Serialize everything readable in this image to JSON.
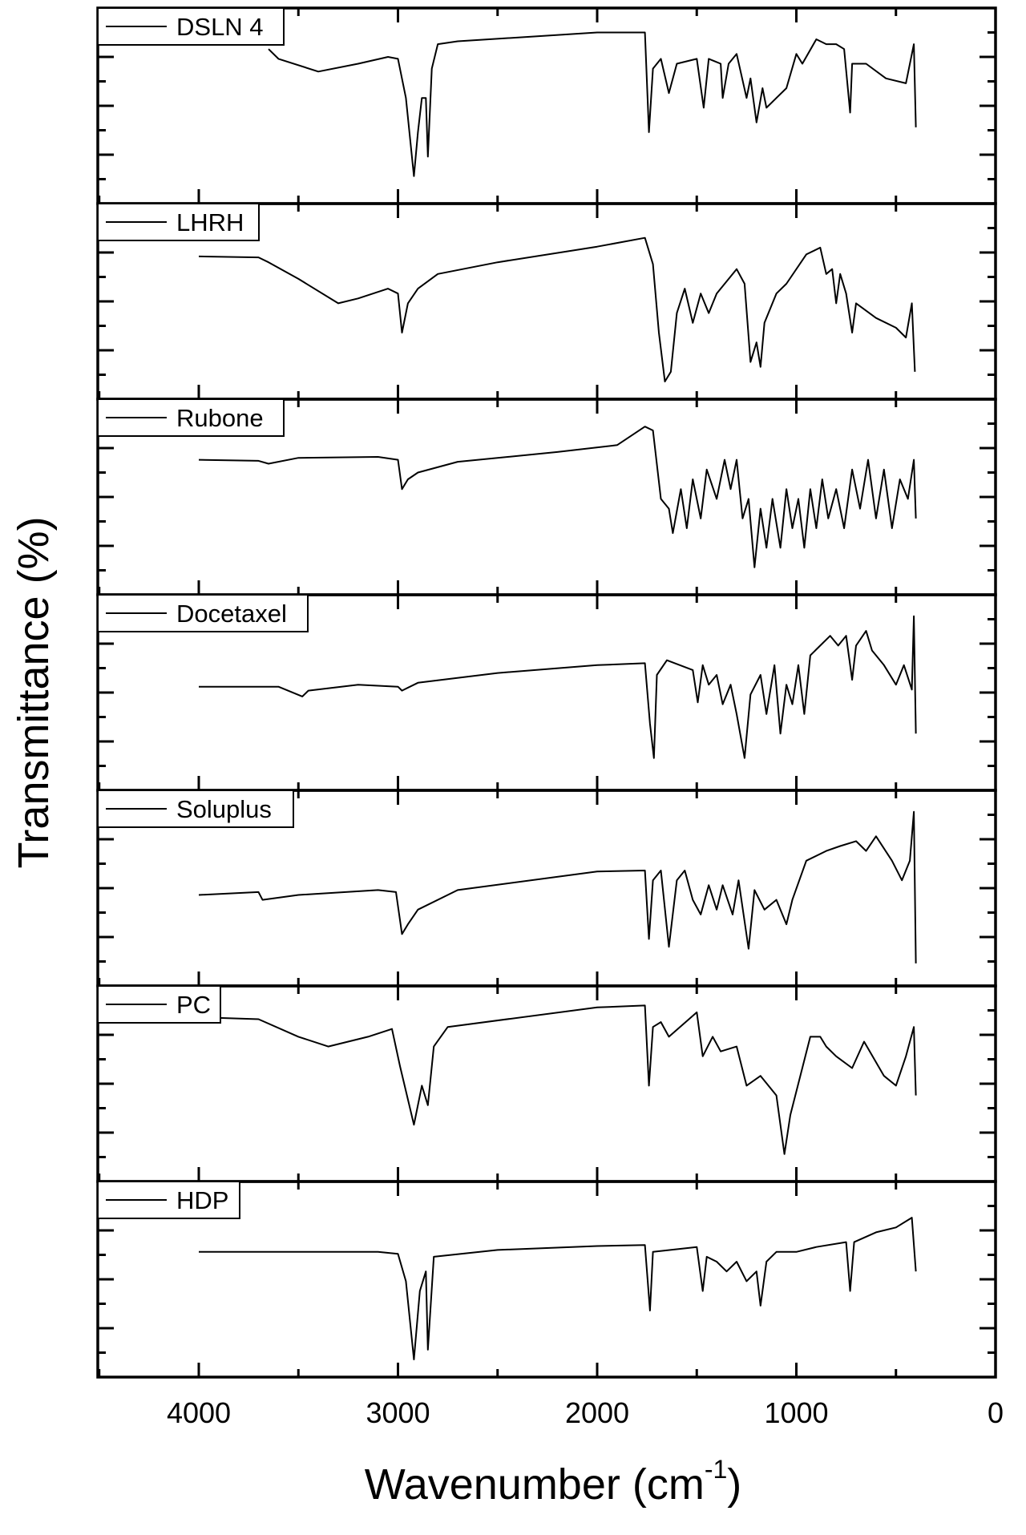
{
  "chart_data": {
    "type": "line",
    "title": "",
    "xlabel": "Wavenumber (cm-1)",
    "xlabel_main": "Wavenumber (cm",
    "xlabel_sup": "-1",
    "xlabel_close": ")",
    "ylabel": "Transmittance (%)",
    "xlim": [
      4500,
      0
    ],
    "x_ticks": [
      4000,
      3000,
      2000,
      1000,
      0
    ],
    "x_tick_labels": [
      "4000",
      "3000",
      "2000",
      "1000",
      "0"
    ],
    "y_units_note": "each panel is normalized to 0–100 (relative transmittance, axes unlabeled)",
    "ylim": [
      0,
      100
    ],
    "grid": false,
    "legend_placement": "top-left of each panel",
    "line_color": "#000000",
    "series": [
      {
        "name": "DSLN 4",
        "points": [
          [
            3650,
            79
          ],
          [
            3600,
            74
          ],
          [
            3400,
            67.5
          ],
          [
            3200,
            71.5
          ],
          [
            3050,
            75
          ],
          [
            3000,
            74
          ],
          [
            2960,
            54
          ],
          [
            2920,
            14
          ],
          [
            2900,
            36.5
          ],
          [
            2880,
            54
          ],
          [
            2860,
            54
          ],
          [
            2850,
            24
          ],
          [
            2830,
            69
          ],
          [
            2800,
            81.5
          ],
          [
            2700,
            83
          ],
          [
            2000,
            87.5
          ],
          [
            1760,
            87.5
          ],
          [
            1740,
            36.5
          ],
          [
            1720,
            69
          ],
          [
            1680,
            74
          ],
          [
            1640,
            56.5
          ],
          [
            1600,
            71.5
          ],
          [
            1500,
            74
          ],
          [
            1465,
            49
          ],
          [
            1440,
            74
          ],
          [
            1380,
            71.5
          ],
          [
            1370,
            54
          ],
          [
            1340,
            71.5
          ],
          [
            1300,
            76.5
          ],
          [
            1250,
            54
          ],
          [
            1230,
            64
          ],
          [
            1200,
            41.5
          ],
          [
            1170,
            59
          ],
          [
            1150,
            49
          ],
          [
            1100,
            54
          ],
          [
            1050,
            59
          ],
          [
            1000,
            76.5
          ],
          [
            970,
            71.5
          ],
          [
            900,
            84
          ],
          [
            850,
            81.5
          ],
          [
            800,
            81.5
          ],
          [
            760,
            79
          ],
          [
            730,
            46.5
          ],
          [
            720,
            71.5
          ],
          [
            650,
            71.5
          ],
          [
            550,
            64
          ],
          [
            450,
            61.5
          ],
          [
            410,
            81.5
          ],
          [
            400,
            39
          ]
        ]
      },
      {
        "name": "LHRH",
        "points": [
          [
            4000,
            73
          ],
          [
            3700,
            72.5
          ],
          [
            3650,
            70
          ],
          [
            3500,
            61.5
          ],
          [
            3300,
            49
          ],
          [
            3200,
            51.5
          ],
          [
            3050,
            56.5
          ],
          [
            3000,
            54
          ],
          [
            2980,
            34
          ],
          [
            2950,
            49
          ],
          [
            2900,
            56.5
          ],
          [
            2800,
            64
          ],
          [
            2500,
            70
          ],
          [
            2000,
            78
          ],
          [
            1760,
            82.5
          ],
          [
            1720,
            69
          ],
          [
            1690,
            34
          ],
          [
            1660,
            9
          ],
          [
            1630,
            14
          ],
          [
            1600,
            44
          ],
          [
            1560,
            56.5
          ],
          [
            1520,
            39
          ],
          [
            1480,
            54
          ],
          [
            1440,
            44
          ],
          [
            1400,
            54
          ],
          [
            1300,
            66.5
          ],
          [
            1260,
            59
          ],
          [
            1230,
            19
          ],
          [
            1200,
            29
          ],
          [
            1180,
            16.5
          ],
          [
            1160,
            39
          ],
          [
            1100,
            54
          ],
          [
            1050,
            59
          ],
          [
            950,
            74
          ],
          [
            880,
            77.5
          ],
          [
            850,
            64
          ],
          [
            820,
            66.5
          ],
          [
            800,
            49
          ],
          [
            780,
            64
          ],
          [
            750,
            54
          ],
          [
            720,
            34
          ],
          [
            700,
            49
          ],
          [
            600,
            41.5
          ],
          [
            500,
            36.5
          ],
          [
            450,
            31.5
          ],
          [
            420,
            49
          ],
          [
            405,
            14
          ]
        ]
      },
      {
        "name": "Rubone",
        "points": [
          [
            4000,
            69
          ],
          [
            3700,
            68.5
          ],
          [
            3650,
            67
          ],
          [
            3500,
            70
          ],
          [
            3100,
            70.5
          ],
          [
            3000,
            69
          ],
          [
            2980,
            54
          ],
          [
            2950,
            59
          ],
          [
            2900,
            62.5
          ],
          [
            2700,
            68
          ],
          [
            2200,
            73
          ],
          [
            1900,
            76.5
          ],
          [
            1760,
            86
          ],
          [
            1720,
            84
          ],
          [
            1680,
            49
          ],
          [
            1640,
            44
          ],
          [
            1620,
            31.5
          ],
          [
            1580,
            54
          ],
          [
            1550,
            34
          ],
          [
            1520,
            59
          ],
          [
            1480,
            39
          ],
          [
            1450,
            64
          ],
          [
            1400,
            49
          ],
          [
            1360,
            69
          ],
          [
            1330,
            54
          ],
          [
            1300,
            69
          ],
          [
            1270,
            39
          ],
          [
            1240,
            49
          ],
          [
            1210,
            14
          ],
          [
            1180,
            44
          ],
          [
            1150,
            24
          ],
          [
            1120,
            49
          ],
          [
            1080,
            24
          ],
          [
            1050,
            54
          ],
          [
            1020,
            34
          ],
          [
            990,
            49
          ],
          [
            960,
            24
          ],
          [
            930,
            54
          ],
          [
            900,
            34
          ],
          [
            870,
            59
          ],
          [
            840,
            39
          ],
          [
            800,
            54
          ],
          [
            760,
            34
          ],
          [
            720,
            64
          ],
          [
            680,
            44
          ],
          [
            640,
            69
          ],
          [
            600,
            39
          ],
          [
            560,
            64
          ],
          [
            520,
            34
          ],
          [
            480,
            59
          ],
          [
            440,
            49
          ],
          [
            410,
            69
          ],
          [
            400,
            39
          ]
        ]
      },
      {
        "name": "Docetaxel",
        "points": [
          [
            4000,
            53
          ],
          [
            3600,
            53
          ],
          [
            3480,
            48
          ],
          [
            3450,
            51
          ],
          [
            3200,
            54
          ],
          [
            3000,
            53
          ],
          [
            2980,
            51
          ],
          [
            2900,
            55
          ],
          [
            2500,
            60
          ],
          [
            2000,
            64
          ],
          [
            1760,
            65
          ],
          [
            1735,
            34
          ],
          [
            1715,
            16.5
          ],
          [
            1700,
            59
          ],
          [
            1650,
            66.5
          ],
          [
            1520,
            61.5
          ],
          [
            1495,
            45
          ],
          [
            1470,
            64
          ],
          [
            1440,
            54
          ],
          [
            1400,
            59
          ],
          [
            1370,
            44
          ],
          [
            1330,
            54
          ],
          [
            1300,
            39
          ],
          [
            1260,
            16.5
          ],
          [
            1230,
            49
          ],
          [
            1180,
            59
          ],
          [
            1150,
            39
          ],
          [
            1110,
            64
          ],
          [
            1080,
            29
          ],
          [
            1050,
            54
          ],
          [
            1020,
            44
          ],
          [
            990,
            64
          ],
          [
            960,
            39
          ],
          [
            930,
            69
          ],
          [
            880,
            74
          ],
          [
            830,
            79
          ],
          [
            790,
            74
          ],
          [
            750,
            79
          ],
          [
            720,
            56.5
          ],
          [
            700,
            74
          ],
          [
            650,
            81.5
          ],
          [
            620,
            71.5
          ],
          [
            560,
            64
          ],
          [
            500,
            54
          ],
          [
            460,
            64
          ],
          [
            420,
            51.5
          ],
          [
            410,
            89
          ],
          [
            400,
            29
          ]
        ]
      },
      {
        "name": "Soluplus",
        "points": [
          [
            4000,
            46.5
          ],
          [
            3700,
            48
          ],
          [
            3680,
            44
          ],
          [
            3500,
            46.5
          ],
          [
            3100,
            49
          ],
          [
            3010,
            48
          ],
          [
            2980,
            26.5
          ],
          [
            2950,
            31.5
          ],
          [
            2900,
            39
          ],
          [
            2700,
            49
          ],
          [
            2000,
            58.5
          ],
          [
            1760,
            59
          ],
          [
            1740,
            24
          ],
          [
            1720,
            54
          ],
          [
            1680,
            59
          ],
          [
            1640,
            20
          ],
          [
            1600,
            54
          ],
          [
            1560,
            59
          ],
          [
            1520,
            44
          ],
          [
            1480,
            36.5
          ],
          [
            1440,
            51.5
          ],
          [
            1400,
            39
          ],
          [
            1370,
            51.5
          ],
          [
            1320,
            36.5
          ],
          [
            1290,
            54
          ],
          [
            1240,
            19
          ],
          [
            1210,
            49
          ],
          [
            1160,
            39
          ],
          [
            1100,
            44
          ],
          [
            1050,
            31.5
          ],
          [
            1020,
            44
          ],
          [
            950,
            64
          ],
          [
            850,
            69
          ],
          [
            780,
            71.5
          ],
          [
            700,
            74
          ],
          [
            650,
            69
          ],
          [
            600,
            76.5
          ],
          [
            520,
            64
          ],
          [
            470,
            54
          ],
          [
            430,
            64
          ],
          [
            410,
            89
          ],
          [
            400,
            11.5
          ]
        ]
      },
      {
        "name": "PC",
        "points": [
          [
            4000,
            84
          ],
          [
            3700,
            83
          ],
          [
            3500,
            74
          ],
          [
            3350,
            69
          ],
          [
            3150,
            74
          ],
          [
            3030,
            78
          ],
          [
            2990,
            59
          ],
          [
            2920,
            29
          ],
          [
            2880,
            49
          ],
          [
            2850,
            39
          ],
          [
            2820,
            69
          ],
          [
            2750,
            79
          ],
          [
            2000,
            89
          ],
          [
            1760,
            90
          ],
          [
            1740,
            49
          ],
          [
            1720,
            79
          ],
          [
            1680,
            81.5
          ],
          [
            1640,
            74
          ],
          [
            1500,
            86.5
          ],
          [
            1470,
            64
          ],
          [
            1420,
            74
          ],
          [
            1380,
            66.5
          ],
          [
            1300,
            69
          ],
          [
            1250,
            49
          ],
          [
            1180,
            54
          ],
          [
            1100,
            44
          ],
          [
            1060,
            14
          ],
          [
            1030,
            34
          ],
          [
            930,
            74
          ],
          [
            880,
            74
          ],
          [
            850,
            69
          ],
          [
            800,
            64
          ],
          [
            720,
            58
          ],
          [
            660,
            71.5
          ],
          [
            560,
            54
          ],
          [
            500,
            49
          ],
          [
            450,
            64
          ],
          [
            410,
            79
          ],
          [
            400,
            44
          ]
        ]
      },
      {
        "name": "HDP",
        "points": [
          [
            4000,
            64
          ],
          [
            3100,
            64
          ],
          [
            3000,
            63
          ],
          [
            2960,
            49
          ],
          [
            2920,
            9
          ],
          [
            2890,
            44
          ],
          [
            2860,
            54
          ],
          [
            2850,
            14
          ],
          [
            2820,
            61.5
          ],
          [
            2500,
            65
          ],
          [
            2000,
            67
          ],
          [
            1760,
            67.5
          ],
          [
            1735,
            34
          ],
          [
            1720,
            64
          ],
          [
            1500,
            66.5
          ],
          [
            1470,
            44
          ],
          [
            1450,
            61.5
          ],
          [
            1400,
            59
          ],
          [
            1350,
            54
          ],
          [
            1300,
            59
          ],
          [
            1250,
            49
          ],
          [
            1200,
            54
          ],
          [
            1180,
            36.5
          ],
          [
            1150,
            59
          ],
          [
            1100,
            64
          ],
          [
            1000,
            64
          ],
          [
            900,
            66.5
          ],
          [
            750,
            69
          ],
          [
            730,
            44
          ],
          [
            710,
            69
          ],
          [
            600,
            74
          ],
          [
            500,
            76.5
          ],
          [
            420,
            81.5
          ],
          [
            400,
            54
          ]
        ]
      }
    ]
  }
}
